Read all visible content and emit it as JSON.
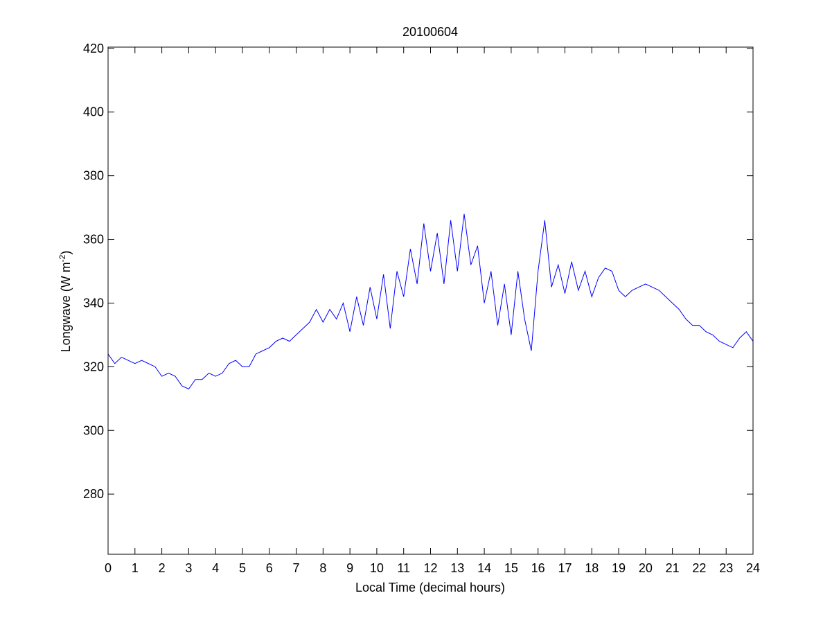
{
  "chart_data": {
    "type": "line",
    "title": "20100604",
    "xlabel": "Local Time (decimal hours)",
    "ylabel": "Longwave (W m",
    "ylabel_superscript": "-2",
    "ylabel_end": ")",
    "x": [
      0,
      0.25,
      0.5,
      0.75,
      1,
      1.25,
      1.5,
      1.75,
      2,
      2.25,
      2.5,
      2.75,
      3,
      3.25,
      3.5,
      3.75,
      4,
      4.25,
      4.5,
      4.75,
      5,
      5.25,
      5.5,
      5.75,
      6,
      6.25,
      6.5,
      6.75,
      7,
      7.25,
      7.5,
      7.75,
      8,
      8.25,
      8.5,
      8.75,
      9,
      9.25,
      9.5,
      9.75,
      10,
      10.25,
      10.5,
      10.75,
      11,
      11.25,
      11.5,
      11.75,
      12,
      12.25,
      12.5,
      12.75,
      13,
      13.25,
      13.5,
      13.75,
      14,
      14.25,
      14.5,
      14.75,
      15,
      15.25,
      15.5,
      15.75,
      16,
      16.25,
      16.5,
      16.75,
      17,
      17.25,
      17.5,
      17.75,
      18,
      18.25,
      18.5,
      18.75,
      19,
      19.25,
      19.5,
      19.75,
      20,
      20.25,
      20.5,
      20.75,
      21,
      21.25,
      21.5,
      21.75,
      22,
      22.25,
      22.5,
      22.75,
      23,
      23.25,
      23.5,
      23.75,
      24
    ],
    "series": [
      {
        "color": "#0000ff",
        "values": [
          324,
          321,
          323,
          322,
          321,
          322,
          321,
          320,
          317,
          318,
          317,
          314,
          313,
          316,
          316,
          318,
          317,
          318,
          321,
          322,
          320,
          320,
          324,
          325,
          326,
          328,
          329,
          328,
          330,
          332,
          334,
          338,
          334,
          338,
          335,
          340,
          331,
          342,
          333,
          345,
          335,
          349,
          332,
          350,
          342,
          357,
          346,
          365,
          350,
          362,
          346,
          366,
          350,
          368,
          352,
          358,
          340,
          350,
          333,
          346,
          330,
          350,
          335,
          325,
          350,
          366,
          345,
          352,
          343,
          353,
          344,
          350,
          342,
          348,
          351,
          350,
          344,
          342,
          344,
          345,
          346,
          345,
          344,
          342,
          340,
          338,
          335,
          333,
          333,
          331,
          330,
          328,
          327,
          326,
          329,
          331,
          328
        ]
      }
    ],
    "xlim": [
      0,
      24
    ],
    "xticks": [
      0,
      1,
      2,
      3,
      4,
      5,
      6,
      7,
      8,
      9,
      10,
      11,
      12,
      13,
      14,
      15,
      16,
      17,
      18,
      19,
      20,
      21,
      22,
      23,
      24
    ],
    "ylim": [
      261.1,
      420.4
    ],
    "yticks": [
      280,
      300,
      320,
      340,
      360,
      380,
      400,
      420
    ],
    "grid": false
  }
}
